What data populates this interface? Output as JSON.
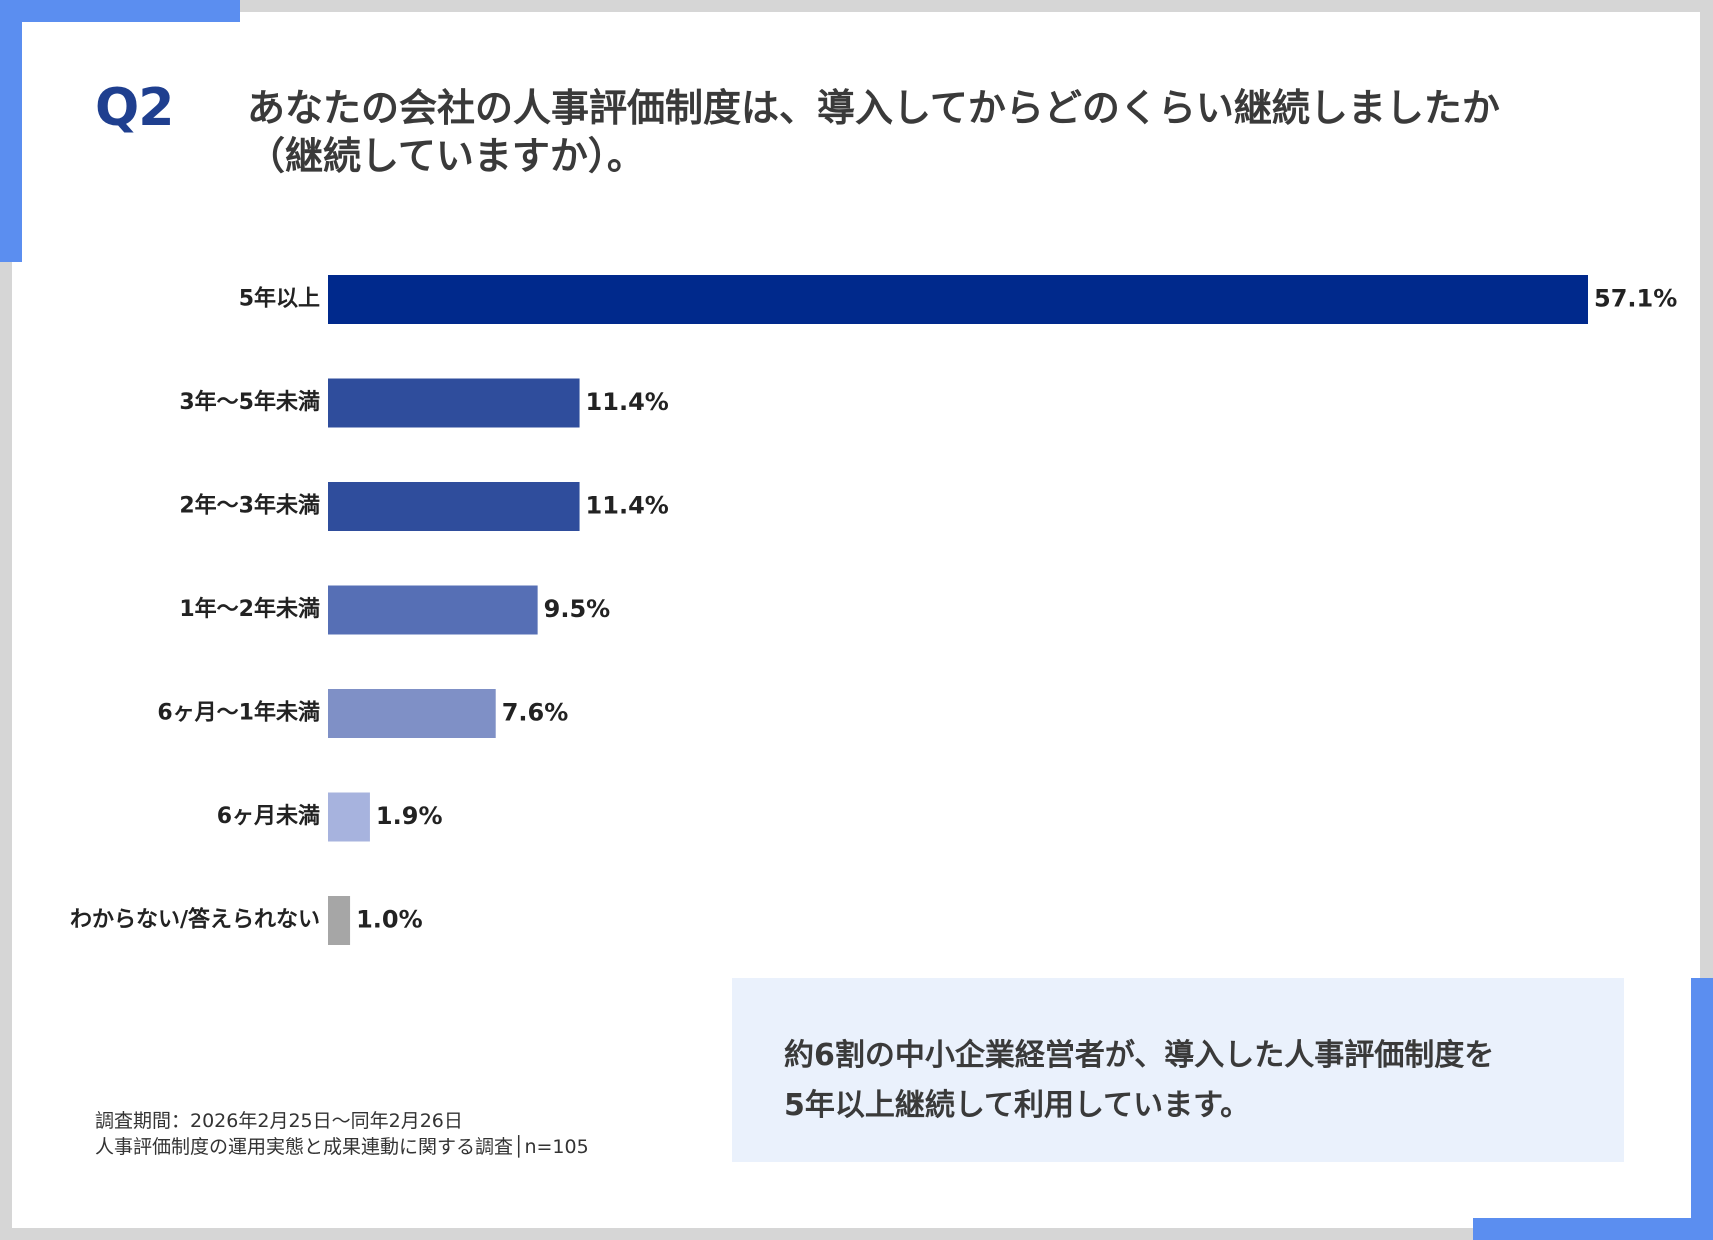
{
  "question": {
    "number": "Q2",
    "line1": "あなたの会社の人事評価制度は、導入してからどのくらい継続しましたか",
    "line2": "（継続していますか）。"
  },
  "chart_data": {
    "type": "bar",
    "orientation": "horizontal",
    "categories": [
      "5年以上",
      "3年〜5年未満",
      "2年〜3年未満",
      "1年〜2年未満",
      "6ヶ月〜1年未満",
      "6ヶ月未満",
      "わからない/答えられない"
    ],
    "values": [
      57.1,
      11.4,
      11.4,
      9.5,
      7.6,
      1.9,
      1.0
    ],
    "value_labels": [
      "57.1%",
      "11.4%",
      "11.4%",
      "9.5%",
      "7.6%",
      "1.9%",
      "1.0%"
    ],
    "colors": [
      "#00298c",
      "#2f4d9c",
      "#2f4d9c",
      "#566fb5",
      "#7f90c6",
      "#a7b3de",
      "#a6a6a6"
    ],
    "unit": "%",
    "xlim": [
      0,
      57.1
    ]
  },
  "note": {
    "period": "調査期間：2026年2月25日〜同年2月26日",
    "survey": "人事評価制度の運用実態と成果連動に関する調査│n=105"
  },
  "summary": {
    "line1": "約6割の中小企業経営者が、導入した人事評価制度を",
    "line2": "5年以上継続して利用しています。"
  }
}
